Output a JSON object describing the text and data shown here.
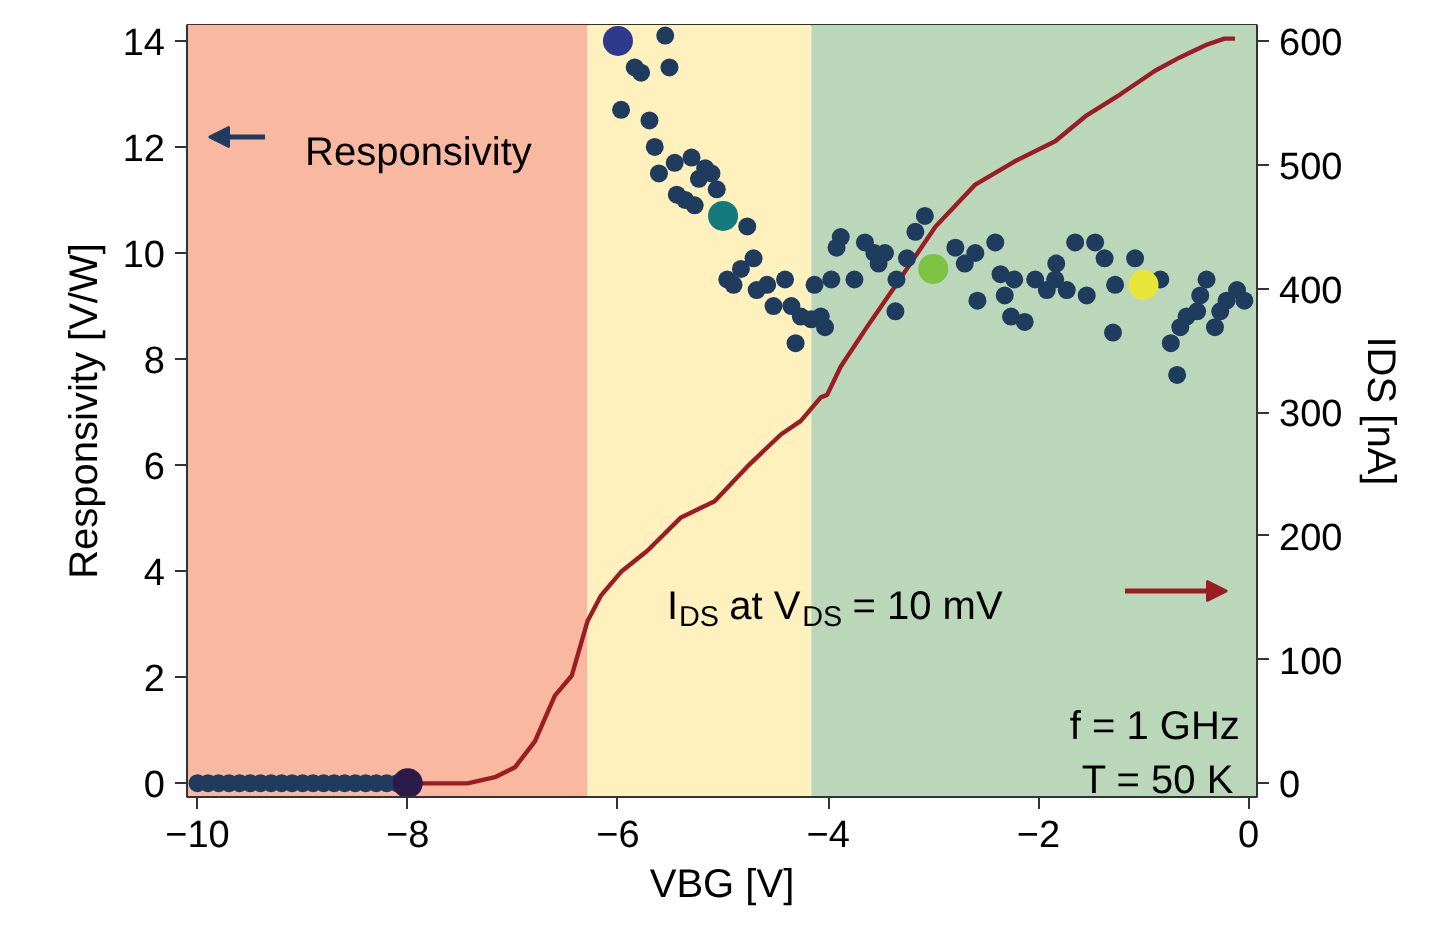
{
  "chart_data": {
    "type": "scatter",
    "xlabel": "VBG [V]",
    "ylabel": "Responsivity [V/W]",
    "y2label": "IDS [nA]",
    "xlim": [
      -10.1,
      0.08
    ],
    "ylim": [
      -0.26,
      14.3
    ],
    "y2lim": [
      -11,
      613
    ],
    "xticks": [
      -10,
      -8,
      -6,
      -4,
      -2,
      0
    ],
    "yticks": [
      0,
      2,
      4,
      6,
      8,
      10,
      12,
      14
    ],
    "y2ticks": [
      0,
      100,
      200,
      300,
      400,
      500,
      600
    ],
    "grid": false,
    "legend": "top left",
    "marker": "circle",
    "bands": [
      {
        "axis": "x",
        "from": -10.1,
        "to": -6.29,
        "label": null,
        "color": "#f9b9a0"
      },
      {
        "axis": "x",
        "from": -6.29,
        "to": -4.16,
        "label": null,
        "color": "#fef1be"
      },
      {
        "axis": "x",
        "from": -4.16,
        "to": 0.08,
        "label": null,
        "color": "#bad7b9"
      }
    ],
    "series": [
      {
        "type": "line",
        "axis": "y2",
        "name": "I$_{DS}$ at V$_{DS}$ = 10 mV",
        "color": "#9b1c22",
        "line_style": "solid",
        "marker": "none",
        "x": [
          -10,
          -9,
          -8,
          -7.43,
          -7.17,
          -6.98,
          -6.79,
          -6.6,
          -6.44,
          -6.29,
          -6.16,
          -5.97,
          -5.72,
          -5.4,
          -5.08,
          -4.77,
          -4.45,
          -4.26,
          -4.07,
          -4.01,
          -3.88,
          -3.63,
          -3.37,
          -2.98,
          -2.6,
          -2.22,
          -1.84,
          -1.54,
          -1.22,
          -0.89,
          -0.65,
          -0.4,
          -0.23,
          -0.13
        ],
        "values": [
          0,
          0,
          0,
          0,
          5,
          13,
          34,
          71,
          87,
          131,
          152,
          171,
          188,
          215,
          228,
          256,
          282,
          293,
          312,
          314,
          337,
          369,
          401,
          450,
          484,
          503,
          519,
          540,
          557,
          576,
          587,
          597,
          602,
          602
        ]
      },
      {
        "axis": "y",
        "name": "Responsivity",
        "color": "#1f3c5e",
        "x": [
          -10,
          -9.9,
          -9.8,
          -9.7,
          -9.6,
          -9.5,
          -9.4,
          -9.3,
          -9.2,
          -9.1,
          -9.0,
          -8.9,
          -8.8,
          -8.7,
          -8.6,
          -8.5,
          -8.4,
          -8.3,
          -8.2,
          -8.1,
          -5.55,
          -5.51,
          -5.84,
          -5.78,
          -5.97,
          -5.7,
          -5.65,
          -5.46,
          -5.3,
          -5.61,
          -5.17,
          -5.11,
          -5.23,
          -5.06,
          -5.44,
          -5.36,
          -5.27,
          -4.77,
          -4.71,
          -4.83,
          -4.96,
          -4.9,
          -4.68,
          -4.58,
          -4.41,
          -4.52,
          -4.35,
          -4.26,
          -4.16,
          -4.31,
          -4.13,
          -3.97,
          -4.07,
          -4.03,
          -3.88,
          -3.92,
          -3.75,
          -3.65,
          -3.56,
          -3.46,
          -3.52,
          -3.35,
          -3.25,
          -3.17,
          -3.08,
          -3.36,
          -2.79,
          -2.7,
          -2.6,
          -2.41,
          -2.58,
          -2.36,
          -2.32,
          -2.23,
          -2.26,
          -2.13,
          -2.03,
          -1.92,
          -1.83,
          -1.84,
          -1.73,
          -1.65,
          -1.46,
          -1.54,
          -1.37,
          -1.27,
          -1.29,
          -1.08,
          -0.84,
          -0.74,
          -0.68,
          -0.65,
          -0.59,
          -0.46,
          -0.4,
          -0.49,
          -0.32,
          -0.21,
          -0.11,
          -0.04,
          -0.27
        ],
        "values": [
          0,
          0,
          0,
          0,
          0,
          0,
          0,
          0,
          0,
          0,
          0,
          0,
          0,
          0,
          0,
          0,
          0,
          0,
          0,
          0,
          14.1,
          13.5,
          13.5,
          13.4,
          12.7,
          12.5,
          12.0,
          11.7,
          11.8,
          11.5,
          11.6,
          11.5,
          11.4,
          11.2,
          11.1,
          11.0,
          10.9,
          10.5,
          9.9,
          9.7,
          9.5,
          9.4,
          9.3,
          9.4,
          9.5,
          9.0,
          9.0,
          8.8,
          8.75,
          8.3,
          9.4,
          9.5,
          8.8,
          8.6,
          10.3,
          10.1,
          9.5,
          10.2,
          10.0,
          10.0,
          9.8,
          9.5,
          9.9,
          10.4,
          10.7,
          8.9,
          10.1,
          9.8,
          10.0,
          10.2,
          9.1,
          9.6,
          9.2,
          9.5,
          8.8,
          8.7,
          9.5,
          9.3,
          9.8,
          9.5,
          9.3,
          10.2,
          10.2,
          9.2,
          9.9,
          9.4,
          8.5,
          9.9,
          9.5,
          8.3,
          7.7,
          8.6,
          8.8,
          9.2,
          9.5,
          8.9,
          8.6,
          9.1,
          9.3,
          9.1,
          8.9
        ]
      },
      {
        "axis": "y",
        "x": [
          -8,
          -6,
          -5,
          -3,
          -1
        ],
        "values": [
          0,
          14.0,
          10.7,
          9.7,
          9.4
        ],
        "colors": [
          "#2c1a4a",
          "#2e3a8c",
          "#147a7c",
          "#7dc242",
          "#e8e43a"
        ]
      }
    ],
    "annotations": [
      "f = 1 GHz",
      "T = 50 K"
    ]
  }
}
